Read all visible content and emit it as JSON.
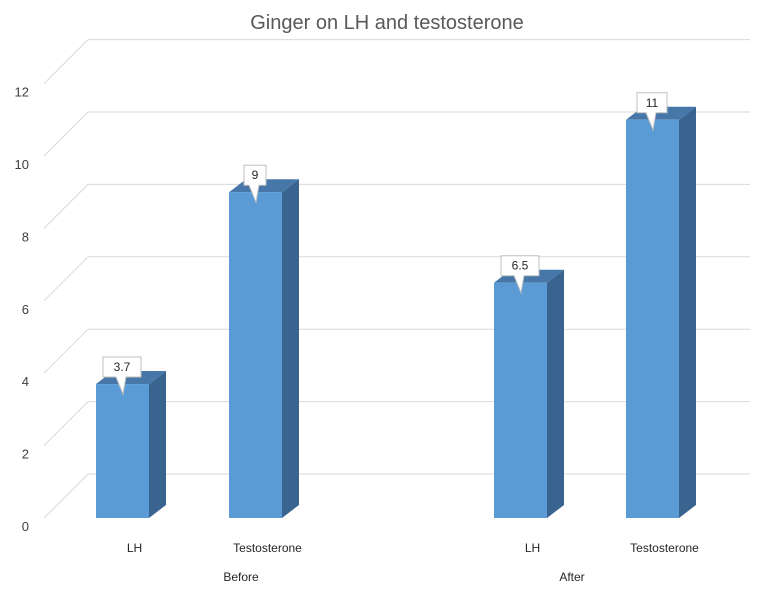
{
  "chart_data": {
    "type": "bar",
    "title": "Ginger on LH and testosterone",
    "groups": [
      {
        "name": "Before",
        "bars": [
          {
            "label": "LH",
            "value": 3.7
          },
          {
            "label": "Testosterone",
            "value": 9
          }
        ]
      },
      {
        "name": "After",
        "bars": [
          {
            "label": "LH",
            "value": 6.5
          },
          {
            "label": "Testosterone",
            "value": 11
          }
        ]
      }
    ],
    "ylim": [
      0,
      12
    ],
    "yticks": [
      0,
      2,
      4,
      6,
      8,
      10,
      12
    ],
    "grid": true,
    "style": "3d-column",
    "colors": {
      "front": "#5b9bd5",
      "side": "#3a6490",
      "top": "#4677a8",
      "grid": "#d9d9d9"
    }
  }
}
